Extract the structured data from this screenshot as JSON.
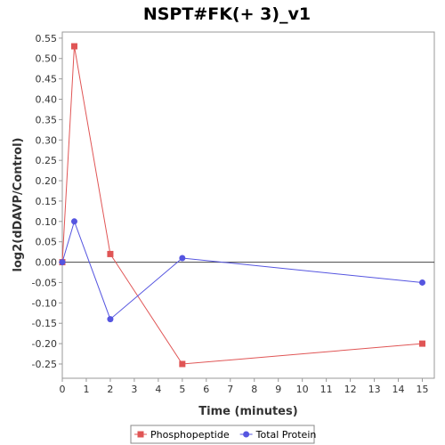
{
  "chart_data": {
    "type": "line",
    "title": "NSPT#FK(+ 3)_v1",
    "xlabel": "Time (minutes)",
    "ylabel": "log2(dDAVP/Control)",
    "xlim": [
      0,
      15.5
    ],
    "ylim": [
      -0.285,
      0.565
    ],
    "x_ticks": [
      0,
      1,
      2,
      3,
      4,
      5,
      6,
      7,
      8,
      9,
      10,
      11,
      12,
      13,
      14,
      15
    ],
    "y_ticks": [
      -0.25,
      -0.2,
      -0.15,
      -0.1,
      -0.05,
      0.0,
      0.05,
      0.1,
      0.15,
      0.2,
      0.25,
      0.3,
      0.35,
      0.4,
      0.45,
      0.5,
      0.55
    ],
    "y_tick_labels": [
      "-0.25",
      "-0.20",
      "-0.15",
      "-0.10",
      "-0.05",
      "0.00",
      "0.05",
      "0.10",
      "0.15",
      "0.20",
      "0.25",
      "0.30",
      "0.35",
      "0.40",
      "0.45",
      "0.50",
      "0.55"
    ],
    "zero_line": true,
    "grid": false,
    "legend_position": "bottom",
    "series": [
      {
        "name": "Phosphopeptide",
        "color": "#e05555",
        "marker": "square",
        "x": [
          0,
          0.5,
          2,
          5,
          15
        ],
        "y": [
          0.0,
          0.53,
          0.02,
          -0.25,
          -0.2
        ]
      },
      {
        "name": "Total Protein",
        "color": "#5555e0",
        "marker": "circle",
        "x": [
          0,
          0.5,
          2,
          5,
          15
        ],
        "y": [
          0.0,
          0.1,
          -0.14,
          0.01,
          -0.05
        ]
      }
    ]
  }
}
